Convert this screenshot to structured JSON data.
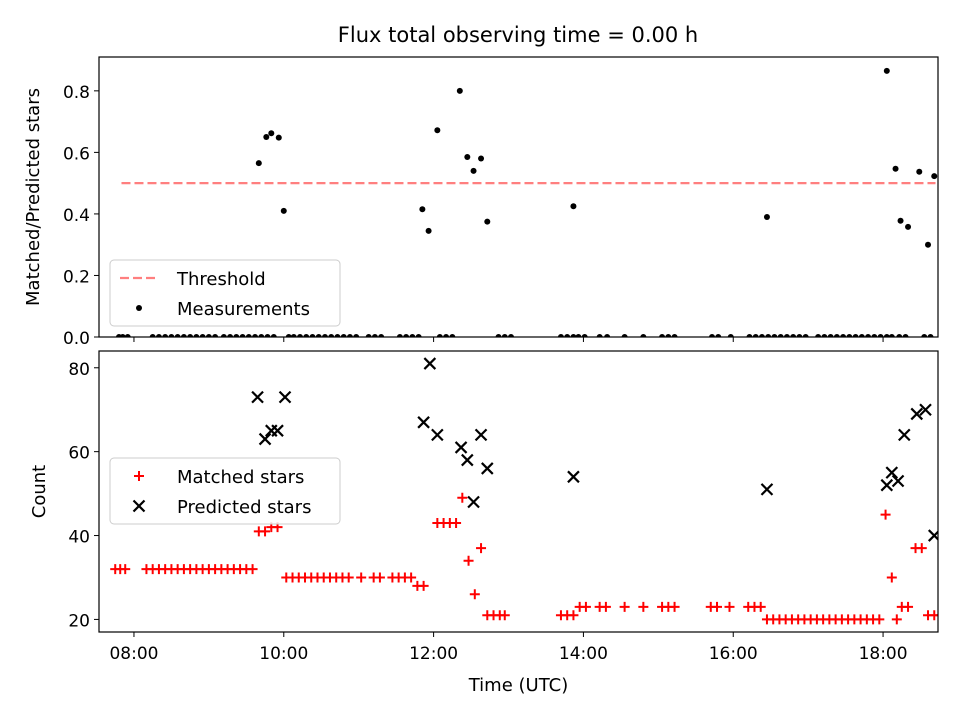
{
  "figure": {
    "title": "Flux total observing time = 0.00 h"
  },
  "chart_data": [
    {
      "type": "scatter",
      "panel": "top",
      "ylabel": "Matched/Predicted stars",
      "xlabel": "",
      "xlim": [
        "07:32",
        "18:44"
      ],
      "ylim": [
        0,
        0.91
      ],
      "yticks": [
        0.0,
        0.2,
        0.4,
        0.6,
        0.8
      ],
      "yticklabels": [
        "0.0",
        "0.2",
        "0.4",
        "0.6",
        "0.8"
      ],
      "xticks": [
        "08:00",
        "10:00",
        "12:00",
        "14:00",
        "16:00",
        "18:00"
      ],
      "xticklabels_visible": false,
      "grid": false,
      "legend": {
        "placement": "lower-left",
        "entries": [
          "Threshold",
          "Measurements"
        ]
      },
      "threshold": {
        "name": "Threshold",
        "value": 0.5,
        "x_range": [
          "07:50",
          "18:42"
        ],
        "color": "#ff7f7f",
        "style": "dashed"
      },
      "series": [
        {
          "name": "Measurements",
          "color": "#000000",
          "marker": "dot",
          "points": [
            [
              "09:40",
              0.565
            ],
            [
              "09:46",
              0.65
            ],
            [
              "09:50",
              0.662
            ],
            [
              "09:56",
              0.648
            ],
            [
              "10:00",
              0.41
            ],
            [
              "11:51",
              0.415
            ],
            [
              "11:56",
              0.345
            ],
            [
              "12:03",
              0.672
            ],
            [
              "12:21",
              0.8
            ],
            [
              "12:27",
              0.585
            ],
            [
              "12:32",
              0.54
            ],
            [
              "12:38",
              0.58
            ],
            [
              "12:43",
              0.375
            ],
            [
              "13:52",
              0.425
            ],
            [
              "16:27",
              0.39
            ],
            [
              "18:03",
              0.865
            ],
            [
              "18:10",
              0.547
            ],
            [
              "18:14",
              0.378
            ],
            [
              "18:20",
              0.358
            ],
            [
              "18:29",
              0.537
            ],
            [
              "18:36",
              0.3
            ],
            [
              "18:41",
              0.523
            ],
            [
              "07:48",
              0
            ],
            [
              "07:51",
              0
            ],
            [
              "07:55",
              0
            ],
            [
              "08:15",
              0
            ],
            [
              "08:20",
              0
            ],
            [
              "08:25",
              0
            ],
            [
              "08:30",
              0
            ],
            [
              "08:35",
              0
            ],
            [
              "08:40",
              0
            ],
            [
              "08:45",
              0
            ],
            [
              "08:50",
              0
            ],
            [
              "08:55",
              0
            ],
            [
              "09:00",
              0
            ],
            [
              "09:05",
              0
            ],
            [
              "09:12",
              0
            ],
            [
              "09:17",
              0
            ],
            [
              "09:22",
              0
            ],
            [
              "09:27",
              0
            ],
            [
              "09:32",
              0
            ],
            [
              "09:37",
              0
            ],
            [
              "09:42",
              0
            ],
            [
              "09:47",
              0
            ],
            [
              "09:52",
              0
            ],
            [
              "10:04",
              0
            ],
            [
              "10:08",
              0
            ],
            [
              "10:13",
              0
            ],
            [
              "10:18",
              0
            ],
            [
              "10:23",
              0
            ],
            [
              "10:28",
              0
            ],
            [
              "10:33",
              0
            ],
            [
              "10:38",
              0
            ],
            [
              "10:43",
              0
            ],
            [
              "10:48",
              0
            ],
            [
              "10:53",
              0
            ],
            [
              "10:58",
              0
            ],
            [
              "11:08",
              0
            ],
            [
              "11:13",
              0
            ],
            [
              "11:18",
              0
            ],
            [
              "11:33",
              0
            ],
            [
              "11:38",
              0
            ],
            [
              "11:43",
              0
            ],
            [
              "11:48",
              0
            ],
            [
              "12:05",
              0
            ],
            [
              "12:10",
              0
            ],
            [
              "12:15",
              0
            ],
            [
              "12:52",
              0
            ],
            [
              "12:57",
              0
            ],
            [
              "13:02",
              0
            ],
            [
              "13:42",
              0
            ],
            [
              "13:47",
              0
            ],
            [
              "13:52",
              0
            ],
            [
              "13:56",
              0
            ],
            [
              "14:01",
              0
            ],
            [
              "14:13",
              0
            ],
            [
              "14:19",
              0
            ],
            [
              "14:33",
              0
            ],
            [
              "14:48",
              0
            ],
            [
              "15:03",
              0
            ],
            [
              "15:08",
              0
            ],
            [
              "15:13",
              0
            ],
            [
              "15:43",
              0
            ],
            [
              "15:48",
              0
            ],
            [
              "15:58",
              0
            ],
            [
              "16:13",
              0
            ],
            [
              "16:18",
              0
            ],
            [
              "16:23",
              0
            ],
            [
              "16:28",
              0
            ],
            [
              "16:33",
              0
            ],
            [
              "16:38",
              0
            ],
            [
              "16:43",
              0
            ],
            [
              "16:48",
              0
            ],
            [
              "16:53",
              0
            ],
            [
              "16:58",
              0
            ],
            [
              "17:08",
              0
            ],
            [
              "17:13",
              0
            ],
            [
              "17:18",
              0
            ],
            [
              "17:23",
              0
            ],
            [
              "17:28",
              0
            ],
            [
              "17:33",
              0
            ],
            [
              "17:38",
              0
            ],
            [
              "17:43",
              0
            ],
            [
              "17:48",
              0
            ],
            [
              "17:53",
              0
            ],
            [
              "17:58",
              0
            ],
            [
              "18:03",
              0
            ],
            [
              "18:07",
              0
            ],
            [
              "18:13",
              0
            ],
            [
              "18:18",
              0
            ],
            [
              "18:33",
              0
            ],
            [
              "18:38",
              0
            ],
            [
              "18:47",
              0
            ]
          ]
        }
      ]
    },
    {
      "type": "scatter",
      "panel": "bottom",
      "ylabel": "Count",
      "xlabel": "Time (UTC)",
      "xlim": [
        "07:32",
        "18:44"
      ],
      "ylim": [
        17,
        84
      ],
      "yticks": [
        20,
        40,
        60,
        80
      ],
      "yticklabels": [
        "20",
        "40",
        "60",
        "80"
      ],
      "xticks": [
        "08:00",
        "10:00",
        "12:00",
        "14:00",
        "16:00",
        "18:00"
      ],
      "xticklabels": [
        "08:00",
        "10:00",
        "12:00",
        "14:00",
        "16:00",
        "18:00"
      ],
      "grid": false,
      "legend": {
        "placement": "center-left",
        "entries": [
          "Matched stars",
          "Predicted stars"
        ]
      },
      "series": [
        {
          "name": "Matched stars",
          "color": "#ff0000",
          "marker": "plus",
          "points": [
            [
              "07:45",
              32
            ],
            [
              "07:49",
              32
            ],
            [
              "07:53",
              32
            ],
            [
              "08:10",
              32
            ],
            [
              "08:15",
              32
            ],
            [
              "08:20",
              32
            ],
            [
              "08:25",
              32
            ],
            [
              "08:30",
              32
            ],
            [
              "08:35",
              32
            ],
            [
              "08:40",
              32
            ],
            [
              "08:45",
              32
            ],
            [
              "08:50",
              32
            ],
            [
              "08:55",
              32
            ],
            [
              "09:00",
              32
            ],
            [
              "09:05",
              32
            ],
            [
              "09:10",
              32
            ],
            [
              "09:15",
              32
            ],
            [
              "09:20",
              32
            ],
            [
              "09:25",
              32
            ],
            [
              "09:30",
              32
            ],
            [
              "09:35",
              32
            ],
            [
              "09:40",
              41
            ],
            [
              "09:45",
              41
            ],
            [
              "09:50",
              42
            ],
            [
              "09:55",
              42
            ],
            [
              "10:02",
              30
            ],
            [
              "10:07",
              30
            ],
            [
              "10:12",
              30
            ],
            [
              "10:17",
              30
            ],
            [
              "10:22",
              30
            ],
            [
              "10:27",
              30
            ],
            [
              "10:32",
              30
            ],
            [
              "10:37",
              30
            ],
            [
              "10:42",
              30
            ],
            [
              "10:47",
              30
            ],
            [
              "10:52",
              30
            ],
            [
              "11:02",
              30
            ],
            [
              "11:12",
              30
            ],
            [
              "11:17",
              30
            ],
            [
              "11:27",
              30
            ],
            [
              "11:32",
              30
            ],
            [
              "11:37",
              30
            ],
            [
              "11:42",
              30
            ],
            [
              "11:47",
              28
            ],
            [
              "11:52",
              28
            ],
            [
              "12:03",
              43
            ],
            [
              "12:08",
              43
            ],
            [
              "12:13",
              43
            ],
            [
              "12:18",
              43
            ],
            [
              "12:23",
              49
            ],
            [
              "12:28",
              34
            ],
            [
              "12:33",
              26
            ],
            [
              "12:38",
              37
            ],
            [
              "12:43",
              21
            ],
            [
              "12:48",
              21
            ],
            [
              "12:53",
              21
            ],
            [
              "12:57",
              21
            ],
            [
              "13:42",
              21
            ],
            [
              "13:47",
              21
            ],
            [
              "13:52",
              21
            ],
            [
              "13:57",
              23
            ],
            [
              "14:02",
              23
            ],
            [
              "14:13",
              23
            ],
            [
              "14:18",
              23
            ],
            [
              "14:33",
              23
            ],
            [
              "14:48",
              23
            ],
            [
              "15:03",
              23
            ],
            [
              "15:08",
              23
            ],
            [
              "15:13",
              23
            ],
            [
              "15:42",
              23
            ],
            [
              "15:47",
              23
            ],
            [
              "15:57",
              23
            ],
            [
              "16:12",
              23
            ],
            [
              "16:17",
              23
            ],
            [
              "16:22",
              23
            ],
            [
              "16:27",
              20
            ],
            [
              "16:32",
              20
            ],
            [
              "16:37",
              20
            ],
            [
              "16:42",
              20
            ],
            [
              "16:47",
              20
            ],
            [
              "16:52",
              20
            ],
            [
              "16:57",
              20
            ],
            [
              "17:02",
              20
            ],
            [
              "17:07",
              20
            ],
            [
              "17:12",
              20
            ],
            [
              "17:17",
              20
            ],
            [
              "17:22",
              20
            ],
            [
              "17:27",
              20
            ],
            [
              "17:32",
              20
            ],
            [
              "17:37",
              20
            ],
            [
              "17:42",
              20
            ],
            [
              "17:47",
              20
            ],
            [
              "17:52",
              20
            ],
            [
              "17:57",
              20
            ],
            [
              "18:02",
              45
            ],
            [
              "18:07",
              30
            ],
            [
              "18:11",
              20
            ],
            [
              "18:15",
              23
            ],
            [
              "18:20",
              23
            ],
            [
              "18:26",
              37
            ],
            [
              "18:31",
              37
            ],
            [
              "18:36",
              21
            ],
            [
              "18:41",
              21
            ],
            [
              "18:46",
              21
            ]
          ]
        },
        {
          "name": "Predicted stars",
          "color": "#000000",
          "marker": "x",
          "points": [
            [
              "09:39",
              73
            ],
            [
              "09:45",
              63
            ],
            [
              "09:50",
              65
            ],
            [
              "09:55",
              65
            ],
            [
              "10:01",
              73
            ],
            [
              "11:52",
              67
            ],
            [
              "11:57",
              81
            ],
            [
              "12:03",
              64
            ],
            [
              "12:22",
              61
            ],
            [
              "12:27",
              58
            ],
            [
              "12:32",
              48
            ],
            [
              "12:38",
              64
            ],
            [
              "12:43",
              56
            ],
            [
              "13:52",
              54
            ],
            [
              "16:27",
              51
            ],
            [
              "18:03",
              52
            ],
            [
              "18:07",
              55
            ],
            [
              "18:12",
              53
            ],
            [
              "18:17",
              64
            ],
            [
              "18:27",
              69
            ],
            [
              "18:34",
              70
            ],
            [
              "18:41",
              40
            ]
          ]
        }
      ]
    }
  ]
}
